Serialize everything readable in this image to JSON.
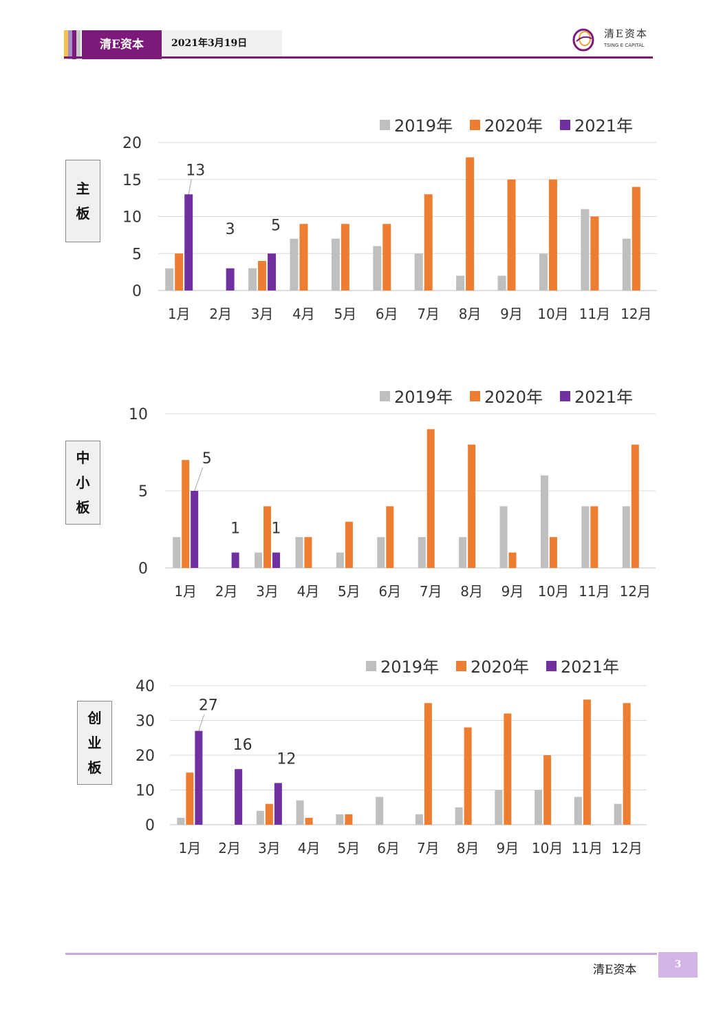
{
  "header": {
    "brand": "清E资本",
    "date": "2021年3月19日",
    "logo_text": "清E资本",
    "logo_sub": "TSING E CAPITAL",
    "accent": "#7b1a78"
  },
  "footer": {
    "brand": "清E资本",
    "page": "3"
  },
  "colors": {
    "2019年": "#bfbfbf",
    "2020年": "#ed7d31",
    "2021年": "#7030a0"
  },
  "chart_data": [
    {
      "type": "bar",
      "side_label": [
        "主",
        "板"
      ],
      "categories": [
        "1月",
        "2月",
        "3月",
        "4月",
        "5月",
        "6月",
        "7月",
        "8月",
        "9月",
        "10月",
        "11月",
        "12月"
      ],
      "series": [
        {
          "name": "2019年",
          "values": [
            3,
            0,
            3,
            7,
            7,
            6,
            5,
            2,
            2,
            5,
            11,
            7
          ]
        },
        {
          "name": "2020年",
          "values": [
            5,
            0,
            4,
            9,
            9,
            9,
            13,
            18,
            15,
            15,
            10,
            14
          ]
        },
        {
          "name": "2021年",
          "values": [
            13,
            3,
            5,
            null,
            null,
            null,
            null,
            null,
            null,
            null,
            null,
            null
          ]
        }
      ],
      "data_labels": [
        {
          "series": "2021年",
          "index": 0,
          "text": "13"
        },
        {
          "series": "2021年",
          "index": 1,
          "text": "3"
        },
        {
          "series": "2021年",
          "index": 2,
          "text": "5"
        }
      ],
      "yticks": [
        "0",
        "5",
        "10",
        "15",
        "20"
      ],
      "ylim": [
        0,
        20
      ],
      "grid": true,
      "legend": "top-right"
    },
    {
      "type": "bar",
      "side_label": [
        "中",
        "小",
        "板"
      ],
      "categories": [
        "1月",
        "2月",
        "3月",
        "4月",
        "5月",
        "6月",
        "7月",
        "8月",
        "9月",
        "10月",
        "11月",
        "12月"
      ],
      "series": [
        {
          "name": "2019年",
          "values": [
            2,
            0,
            1,
            2,
            1,
            2,
            2,
            2,
            4,
            6,
            4,
            4
          ]
        },
        {
          "name": "2020年",
          "values": [
            7,
            0,
            4,
            2,
            3,
            4,
            9,
            8,
            1,
            2,
            4,
            8
          ]
        },
        {
          "name": "2021年",
          "values": [
            5,
            1,
            1,
            null,
            null,
            null,
            null,
            null,
            null,
            null,
            null,
            null
          ]
        }
      ],
      "data_labels": [
        {
          "series": "2021年",
          "index": 0,
          "text": "5"
        },
        {
          "series": "2021年",
          "index": 1,
          "text": "1"
        },
        {
          "series": "2021年",
          "index": 2,
          "text": "1"
        }
      ],
      "yticks": [
        "0",
        "5",
        "10"
      ],
      "ylim": [
        0,
        10
      ],
      "grid": true,
      "legend": "top-right"
    },
    {
      "type": "bar",
      "side_label": [
        "创",
        "业",
        "板"
      ],
      "categories": [
        "1月",
        "2月",
        "3月",
        "4月",
        "5月",
        "6月",
        "7月",
        "8月",
        "9月",
        "10月",
        "11月",
        "12月"
      ],
      "series": [
        {
          "name": "2019年",
          "values": [
            2,
            0,
            4,
            7,
            3,
            8,
            3,
            5,
            10,
            10,
            8,
            6
          ]
        },
        {
          "name": "2020年",
          "values": [
            15,
            0,
            6,
            2,
            3,
            0,
            35,
            28,
            32,
            20,
            36,
            35
          ]
        },
        {
          "name": "2021年",
          "values": [
            27,
            16,
            12,
            null,
            null,
            null,
            null,
            null,
            null,
            null,
            null,
            null
          ]
        }
      ],
      "data_labels": [
        {
          "series": "2021年",
          "index": 0,
          "text": "27"
        },
        {
          "series": "2021年",
          "index": 1,
          "text": "16"
        },
        {
          "series": "2021年",
          "index": 2,
          "text": "12"
        }
      ],
      "yticks": [
        "0",
        "10",
        "20",
        "30",
        "40"
      ],
      "ylim": [
        0,
        40
      ],
      "grid": true,
      "legend": "top-right"
    }
  ]
}
